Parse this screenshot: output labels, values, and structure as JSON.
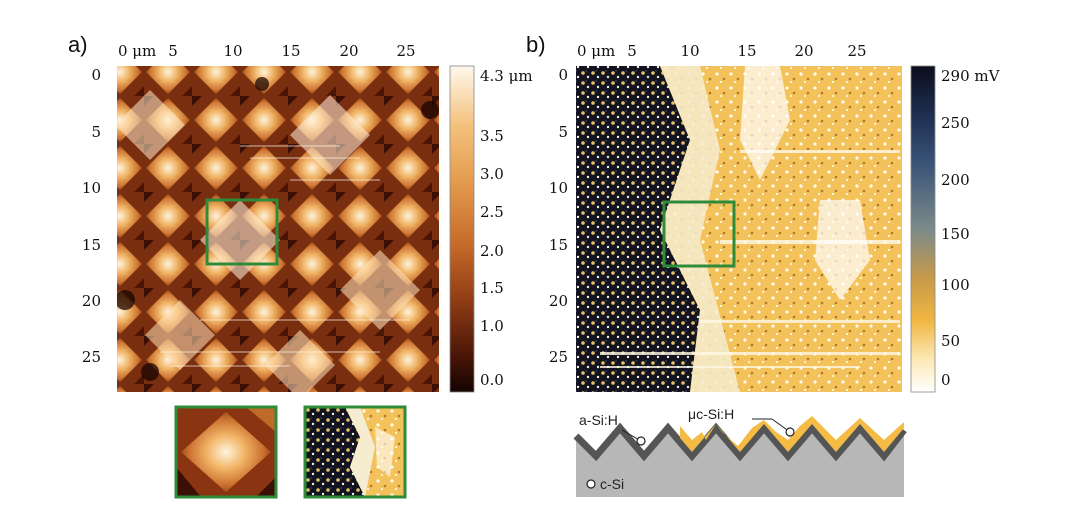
{
  "panels": [
    {
      "label": "a)",
      "x_ticks": [
        "0 μm",
        "5",
        "10",
        "15",
        "20",
        "25"
      ],
      "y_ticks": [
        "0",
        "5",
        "10",
        "15",
        "20",
        "25"
      ],
      "colorbar": {
        "ticks": [
          "4.3 μm",
          "3.5",
          "3.0",
          "2.5",
          "2.0",
          "1.5",
          "1.0",
          "0.0"
        ],
        "colors": [
          "#fff8ec",
          "#f4c27e",
          "#e39a4d",
          "#c56a2a",
          "#8f3c15",
          "#4e1808",
          "#140302"
        ]
      },
      "highlight_color": "#2e8b3a"
    },
    {
      "label": "b)",
      "x_ticks": [
        "0 μm",
        "5",
        "10",
        "15",
        "20",
        "25"
      ],
      "y_ticks": [
        "0",
        "5",
        "10",
        "15",
        "20",
        "25"
      ],
      "colorbar": {
        "ticks": [
          "290 mV",
          "250",
          "200",
          "150",
          "100",
          "50",
          "0"
        ],
        "colors": [
          "#0c0e1c",
          "#1e2e50",
          "#3a5478",
          "#7b8a8a",
          "#c79a4a",
          "#f0b642",
          "#fbe9b6",
          "#ffffff"
        ]
      },
      "highlight_color": "#2e8b3a"
    }
  ],
  "diagram": {
    "labels": [
      "a-Si:H",
      "μc-Si:H",
      "c-Si"
    ],
    "colors": {
      "c_si": "#b7b7b7",
      "a_si": "#555555",
      "uc_si": "#f4bb45"
    }
  }
}
